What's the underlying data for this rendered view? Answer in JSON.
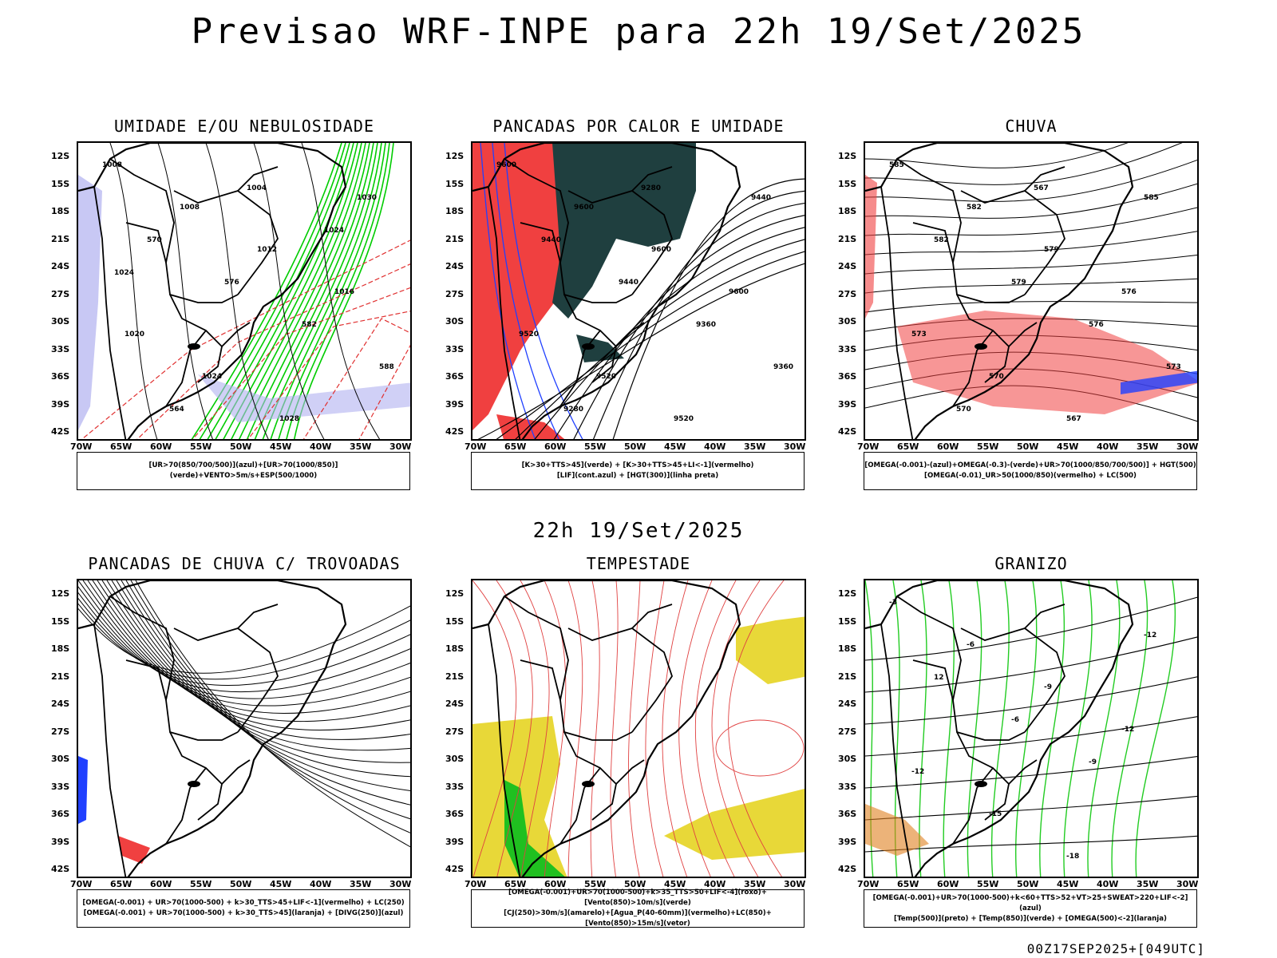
{
  "header": {
    "title": "Previsao WRF-INPE  para 22h 19/Set/2025",
    "mid_date": "22h 19/Set/2025",
    "footer": "00Z17SEP2025+[049UTC]"
  },
  "axes": {
    "lat_labels": [
      "12S",
      "15S",
      "18S",
      "21S",
      "24S",
      "27S",
      "30S",
      "33S",
      "36S",
      "39S",
      "42S"
    ],
    "lon_labels": [
      "70W",
      "65W",
      "60W",
      "55W",
      "50W",
      "45W",
      "40W",
      "35W",
      "30W"
    ]
  },
  "panels": [
    {
      "title": "UMIDADE E/OU NEBULOSIDADE",
      "legend": [
        "[UR>70(850/700/500)](azul)+[UR>70(1000/850)](verde)+VENTO>5m/s+ESP(500/1000)"
      ],
      "contour_labels": [
        "1008",
        "1008",
        "1012",
        "1016",
        "1020",
        "1024",
        "1028",
        "1030",
        "570",
        "576",
        "582",
        "588",
        "564",
        "1004",
        "1024",
        "1024"
      ]
    },
    {
      "title": "PANCADAS POR CALOR E UMIDADE",
      "legend": [
        "[K>30+TTS>45](verde) + [K>30+TTS>45+LI<-1](vermelho)",
        "[LIF](cont.azul) + [HGT(300)](linha preta)"
      ],
      "contour_labels": [
        "9600",
        "9600",
        "9600",
        "9600",
        "9520",
        "9520",
        "9520",
        "9440",
        "9440",
        "9440",
        "9360",
        "9360",
        "9280",
        "9280"
      ]
    },
    {
      "title": "CHUVA",
      "legend": [
        "[OMEGA(-0.001)-(azul)+OMEGA(-0.3)-(verde)+UR>70(1000/850/700/500)] + HGT(500)",
        "[OMEGA(-0.01)_UR>50(1000/850)(vermelho) + LC(500)"
      ],
      "contour_labels": [
        "585",
        "582",
        "579",
        "576",
        "573",
        "570",
        "567",
        "585",
        "582",
        "579",
        "576",
        "573",
        "570",
        "567"
      ]
    },
    {
      "title": "PANCADAS DE CHUVA C/ TROVOADAS",
      "legend": [
        "[OMEGA(-0.001) + UR>70(1000-500) + k>30_TTS>45+LIF<-1](vermelho) + LC(250)",
        "[OMEGA(-0.001) + UR>70(1000-500) + k>30_TTS>45](laranja) + [DIVG(250)](azul)"
      ],
      "contour_labels": []
    },
    {
      "title": "TEMPESTADE",
      "legend": [
        "[OMEGA(-0.001)+UR>70(1000-500)+k>35_TTS>50+LIF<-4](roxo)+[Vento(850)>10m/s](verde)",
        "[CJ(250)>30m/s](amarelo)+[Agua_P(40-60mm)](vermelho)+LC(850)+[Vento(850)>15m/s](vetor)"
      ],
      "contour_labels": []
    },
    {
      "title": "GRANIZO",
      "legend": [
        "[OMEGA(-0.001)+UR>70(1000-500)+k<60+TTS>52+VT>25+SWEAT>220+LIF<-2](azul)",
        "[Temp(500)](preto) + [Temp(850)](verde) + [OMEGA(500)<-2](laranja)"
      ],
      "contour_labels": [
        "-3",
        "-6",
        "-9",
        "-12",
        "-12",
        "-15",
        "-18",
        "-12",
        "12",
        "-6",
        "-9"
      ]
    }
  ],
  "colors": {
    "humidity_green": "#00cc00",
    "humidity_blue": "#b0b0f0",
    "convection_red": "#f04040",
    "dark_teal": "#1f3f3f",
    "lif_blue": "#2040ff",
    "jet_yellow": "#e8d838",
    "storm_green": "#20c020",
    "temp_green": "#22cc22",
    "orange": "#e08020"
  }
}
